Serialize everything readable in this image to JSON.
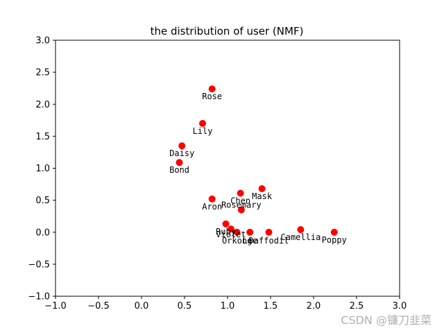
{
  "chart_data": {
    "type": "scatter",
    "title": "the distribution of user (NMF)",
    "xlabel": "",
    "ylabel": "",
    "xlim": [
      -1.0,
      3.0
    ],
    "ylim": [
      -1.0,
      3.0
    ],
    "xticks": [
      -1.0,
      -0.5,
      0.0,
      0.5,
      1.0,
      1.5,
      2.0,
      2.5,
      3.0
    ],
    "yticks": [
      -1.0,
      -0.5,
      0.0,
      0.5,
      1.0,
      1.5,
      2.0,
      2.5,
      3.0
    ],
    "xtick_labels": [
      "−1.0",
      "−0.5",
      "0.0",
      "0.5",
      "1.0",
      "1.5",
      "2.0",
      "2.5",
      "3.0"
    ],
    "ytick_labels": [
      "−1.0",
      "−0.5",
      "0.0",
      "0.5",
      "1.0",
      "1.5",
      "2.0",
      "2.5",
      "3.0"
    ],
    "grid": false,
    "marker_color": "#ff0000",
    "points": [
      {
        "name": "Rose",
        "x": 0.82,
        "y": 2.24
      },
      {
        "name": "Lily",
        "x": 0.71,
        "y": 1.7
      },
      {
        "name": "Daisy",
        "x": 0.47,
        "y": 1.35
      },
      {
        "name": "Bond",
        "x": 0.44,
        "y": 1.09
      },
      {
        "name": "Mask",
        "x": 1.4,
        "y": 0.68
      },
      {
        "name": "Chen",
        "x": 1.15,
        "y": 0.61
      },
      {
        "name": "Aron",
        "x": 0.82,
        "y": 0.52
      },
      {
        "name": "Rosemary",
        "x": 1.16,
        "y": 0.35
      },
      {
        "name": "Ruby",
        "x": 0.98,
        "y": 0.13
      },
      {
        "name": "Violet",
        "x": 1.04,
        "y": 0.05
      },
      {
        "name": "Orkong",
        "x": 1.11,
        "y": 0.0
      },
      {
        "name": "Lee",
        "x": 1.26,
        "y": 0.0
      },
      {
        "name": "Daffodil",
        "x": 1.48,
        "y": 0.0
      },
      {
        "name": "Camellia",
        "x": 1.85,
        "y": 0.04
      },
      {
        "name": "Poppy",
        "x": 2.24,
        "y": 0.0
      }
    ]
  },
  "watermark": "CSDN @镰刀韭菜"
}
